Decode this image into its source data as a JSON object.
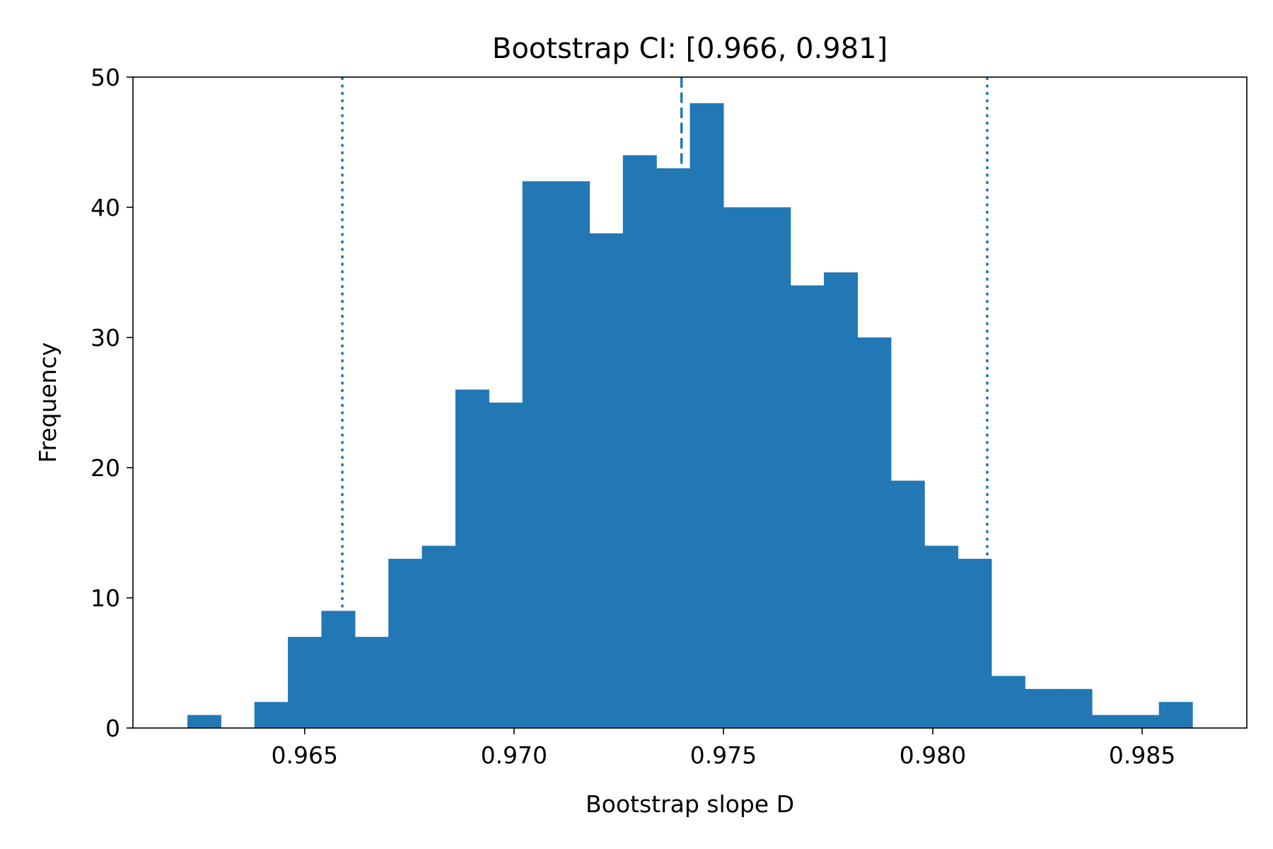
{
  "chart_data": {
    "type": "bar",
    "title": "Bootstrap CI: [0.966, 0.981]",
    "xlabel": "Bootstrap slope D",
    "ylabel": "Frequency",
    "xlim": [
      0.9609,
      0.9875
    ],
    "ylim": [
      0,
      50
    ],
    "grid": false,
    "xticks": [
      0.965,
      0.97,
      0.975,
      0.98,
      0.985
    ],
    "xtick_labels": [
      "0.965",
      "0.970",
      "0.975",
      "0.980",
      "0.985"
    ],
    "yticks": [
      0,
      10,
      20,
      30,
      40,
      50
    ],
    "ytick_labels": [
      "0",
      "10",
      "20",
      "30",
      "40",
      "50"
    ],
    "bar_color": "#2178b4",
    "bins": {
      "start": 0.9622,
      "width": 0.0008,
      "counts": [
        1,
        0,
        2,
        7,
        9,
        7,
        13,
        14,
        26,
        25,
        42,
        42,
        38,
        44,
        43,
        48,
        40,
        40,
        34,
        35,
        30,
        19,
        14,
        13,
        4,
        3,
        3,
        1,
        1,
        2
      ]
    },
    "reference_lines": [
      {
        "x": 0.9659,
        "style": "dotted",
        "color": "#2178b4"
      },
      {
        "x": 0.974,
        "style": "dashed",
        "color": "#2178b4"
      },
      {
        "x": 0.9813,
        "style": "dotted",
        "color": "#2178b4"
      }
    ]
  }
}
